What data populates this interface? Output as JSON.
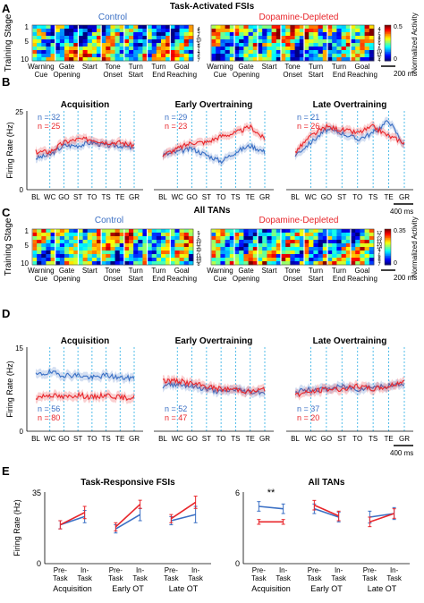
{
  "panels": {
    "A": {
      "letter": "A",
      "title": "Task-Activated FSIs",
      "group_left": "Control",
      "group_right": "Dopamine-Depleted",
      "ylabel": "Training Stage",
      "event_labels": [
        [
          "Warning",
          "Cue"
        ],
        [
          "Gate",
          "Opening"
        ],
        [
          "Start"
        ],
        [
          "Tone",
          "Onset"
        ],
        [
          "Turn",
          "Start"
        ],
        [
          "Turn",
          "End"
        ],
        [
          "Goal",
          "Reaching"
        ]
      ],
      "stage_ticks": [
        "1",
        "5",
        "10"
      ],
      "n_left": [
        "4",
        "5",
        "7",
        "5",
        "10",
        "5",
        "8",
        "7",
        "4",
        "3",
        "5",
        "7"
      ],
      "n_right": [
        "4",
        "7",
        "5",
        "4",
        "8",
        "6",
        "7",
        "6",
        "10",
        "11",
        "5",
        "4"
      ],
      "colorbar_label": "Normalized Activity",
      "colorbar_max": "0.5",
      "colorbar_min": "0",
      "scalebar": "200 ms"
    },
    "B": {
      "letter": "B",
      "ylabel": "Firing Rate (Hz)",
      "ymax": "25",
      "ymin": "0",
      "scalebar": "400 ms"
    },
    "C": {
      "letter": "C",
      "title": "All TANs",
      "group_left": "Control",
      "group_right": "Dopamine-Depleted",
      "ylabel": "Training Stage",
      "event_labels": [
        [
          "Warning",
          "Cue"
        ],
        [
          "Gate",
          "Opening"
        ],
        [
          "Start"
        ],
        [
          "Tone",
          "Onset"
        ],
        [
          "Turn",
          "Start"
        ],
        [
          "Turn",
          "End"
        ],
        [
          "Goal",
          "Reaching"
        ]
      ],
      "stage_ticks": [
        "1",
        "5",
        "10"
      ],
      "n_left": [
        "5",
        "7",
        "5",
        "10",
        "11",
        "9",
        "10",
        "7",
        "11",
        "10",
        "10",
        "8"
      ],
      "n_right": [
        "17",
        "7",
        "13",
        "11",
        "10",
        "14",
        "4",
        "7",
        "6",
        "8",
        "9",
        "7"
      ],
      "colorbar_label": "Normalized Activity",
      "colorbar_max": "0.35",
      "colorbar_min": "0",
      "scalebar": "200 ms"
    },
    "D": {
      "letter": "D",
      "ylabel": "Firing Rate (Hz)",
      "ymax": "15",
      "ymin": "0",
      "scalebar": "400 ms"
    },
    "E": {
      "letter": "E",
      "ylabel": "Firing Rate (Hz)",
      "sig": "**"
    }
  },
  "colors": {
    "control": "#3a6fc4",
    "depleted": "#e8262b",
    "event_line": "#3fb6e8"
  },
  "chart_data": [
    {
      "type": "line",
      "panel": "B",
      "title": "Acquisition",
      "x": [
        "BL",
        "WC",
        "GO",
        "ST",
        "TO",
        "TS",
        "TE",
        "GR"
      ],
      "ylim": [
        0,
        25
      ],
      "series": [
        {
          "name": "n = 32",
          "values": [
            10,
            11,
            14,
            14,
            15,
            14,
            14,
            13
          ]
        },
        {
          "name": "n = 25",
          "values": [
            12,
            12,
            15,
            16,
            16,
            15,
            15,
            14
          ]
        }
      ]
    },
    {
      "type": "line",
      "panel": "B",
      "title": "Early Overtraining",
      "x": [
        "BL",
        "WC",
        "GO",
        "ST",
        "TO",
        "TS",
        "TE",
        "GR"
      ],
      "ylim": [
        0,
        25
      ],
      "series": [
        {
          "name": "n = 29",
          "values": [
            11,
            12,
            13,
            11,
            9,
            12,
            14,
            12
          ]
        },
        {
          "name": "n = 23",
          "values": [
            11,
            13,
            15,
            15,
            17,
            18,
            20,
            16
          ]
        }
      ]
    },
    {
      "type": "line",
      "panel": "B",
      "title": "Late Overtraining",
      "x": [
        "BL",
        "WC",
        "GO",
        "ST",
        "TO",
        "TS",
        "TE",
        "GR"
      ],
      "ylim": [
        0,
        25
      ],
      "series": [
        {
          "name": "n = 21",
          "values": [
            11,
            15,
            19,
            18,
            16,
            18,
            22,
            14
          ]
        },
        {
          "name": "n = 26",
          "values": [
            12,
            17,
            20,
            19,
            18,
            20,
            17,
            15
          ]
        }
      ]
    },
    {
      "type": "line",
      "panel": "D",
      "title": "Acquisition",
      "x": [
        "BL",
        "WC",
        "GO",
        "ST",
        "TO",
        "TS",
        "TE",
        "GR"
      ],
      "ylim": [
        0,
        15
      ],
      "series": [
        {
          "name": "n = 56",
          "values": [
            10,
            10.5,
            10,
            10,
            9.5,
            10,
            9.5,
            9.5
          ]
        },
        {
          "name": "n = 80",
          "values": [
            6,
            6.5,
            6,
            6.5,
            6,
            6.5,
            6,
            6
          ]
        }
      ]
    },
    {
      "type": "line",
      "panel": "D",
      "title": "Early Overtraining",
      "x": [
        "BL",
        "WC",
        "GO",
        "ST",
        "TO",
        "TS",
        "TE",
        "GR"
      ],
      "ylim": [
        0,
        15
      ],
      "series": [
        {
          "name": "n = 52",
          "values": [
            8,
            8.5,
            8,
            7.5,
            7,
            7.5,
            7,
            7
          ]
        },
        {
          "name": "n = 47",
          "values": [
            9,
            9,
            8.5,
            8,
            7.5,
            7.5,
            7,
            7.5
          ]
        }
      ]
    },
    {
      "type": "line",
      "panel": "D",
      "title": "Late Overtraining",
      "x": [
        "BL",
        "WC",
        "GO",
        "ST",
        "TO",
        "TS",
        "TE",
        "GR"
      ],
      "ylim": [
        0,
        15
      ],
      "series": [
        {
          "name": "n = 37",
          "values": [
            7,
            7.5,
            7.5,
            8,
            7.5,
            8,
            8,
            8.5
          ]
        },
        {
          "name": "n = 20",
          "values": [
            6.5,
            7,
            7.5,
            7.5,
            8,
            7.5,
            8,
            9
          ]
        }
      ]
    },
    {
      "type": "line",
      "panel": "E",
      "title": "Task-Responsive FSIs",
      "groups": [
        "Acquisition",
        "Early OT",
        "Late OT"
      ],
      "x": [
        "Pre-Task",
        "In-Task"
      ],
      "ylim": [
        0,
        35
      ],
      "yticks": [
        "0",
        "35"
      ],
      "series": [
        {
          "values": [
            [
              19,
              23
            ],
            [
              17,
              24
            ],
            [
              21,
              24
            ]
          ],
          "err": [
            [
              2,
              3
            ],
            [
              2,
              3
            ],
            [
              2,
              4
            ]
          ]
        },
        {
          "values": [
            [
              19,
              25
            ],
            [
              18,
              29
            ],
            [
              22,
              30
            ]
          ],
          "err": [
            [
              2,
              3
            ],
            [
              2,
              2
            ],
            [
              2,
              3
            ]
          ]
        }
      ]
    },
    {
      "type": "line",
      "panel": "E",
      "title": "All TANs",
      "groups": [
        "Acquisition",
        "Early OT",
        "Late OT"
      ],
      "x": [
        "Pre-Task",
        "In-Task"
      ],
      "ylim": [
        0,
        6
      ],
      "yticks": [
        "0",
        "6"
      ],
      "series": [
        {
          "values": [
            [
              4.8,
              4.6
            ],
            [
              4.6,
              3.9
            ],
            [
              3.9,
              4.2
            ]
          ],
          "err": [
            [
              0.4,
              0.4
            ],
            [
              0.4,
              0.4
            ],
            [
              0.5,
              0.5
            ]
          ]
        },
        {
          "values": [
            [
              3.5,
              3.5
            ],
            [
              4.9,
              4.0
            ],
            [
              3.5,
              4.2
            ]
          ],
          "err": [
            [
              0.2,
              0.2
            ],
            [
              0.4,
              0.4
            ],
            [
              0.4,
              0.4
            ]
          ]
        }
      ]
    }
  ]
}
